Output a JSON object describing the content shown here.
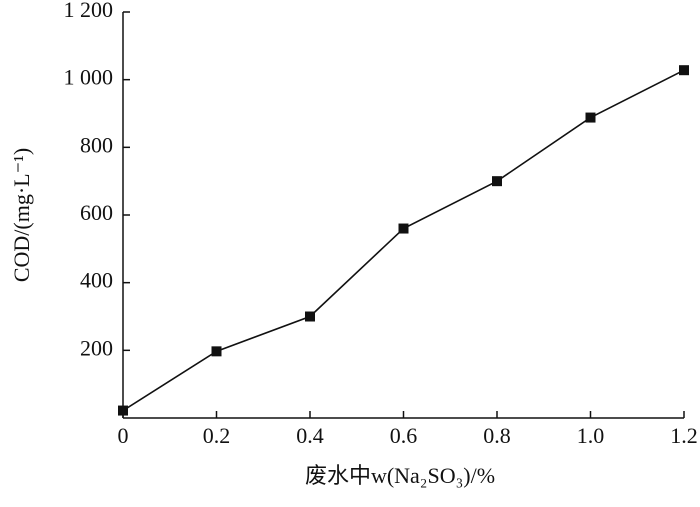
{
  "chart_data": {
    "type": "line",
    "x_label": "废水中w(Na₂SO₃)/%",
    "y_label": "COD/(mg·L⁻¹)",
    "x": [
      0,
      0.2,
      0.4,
      0.6,
      0.8,
      1.0,
      1.2
    ],
    "series": [
      {
        "name": "COD",
        "color": "#111111",
        "values": [
          22,
          197,
          300,
          560,
          700,
          888,
          1028
        ]
      }
    ],
    "xlim": [
      0,
      1.2
    ],
    "xticks": [
      0,
      0.2,
      0.4,
      0.6,
      0.8,
      {
        "value": 1.0,
        "label": "1.0"
      },
      1.2
    ],
    "ylim": [
      0,
      1200
    ],
    "yticks": [
      200,
      400,
      600,
      800,
      {
        "value": 1000,
        "label": "1 000"
      },
      {
        "value": 1200,
        "label": "1 200"
      }
    ],
    "marker": "square"
  }
}
